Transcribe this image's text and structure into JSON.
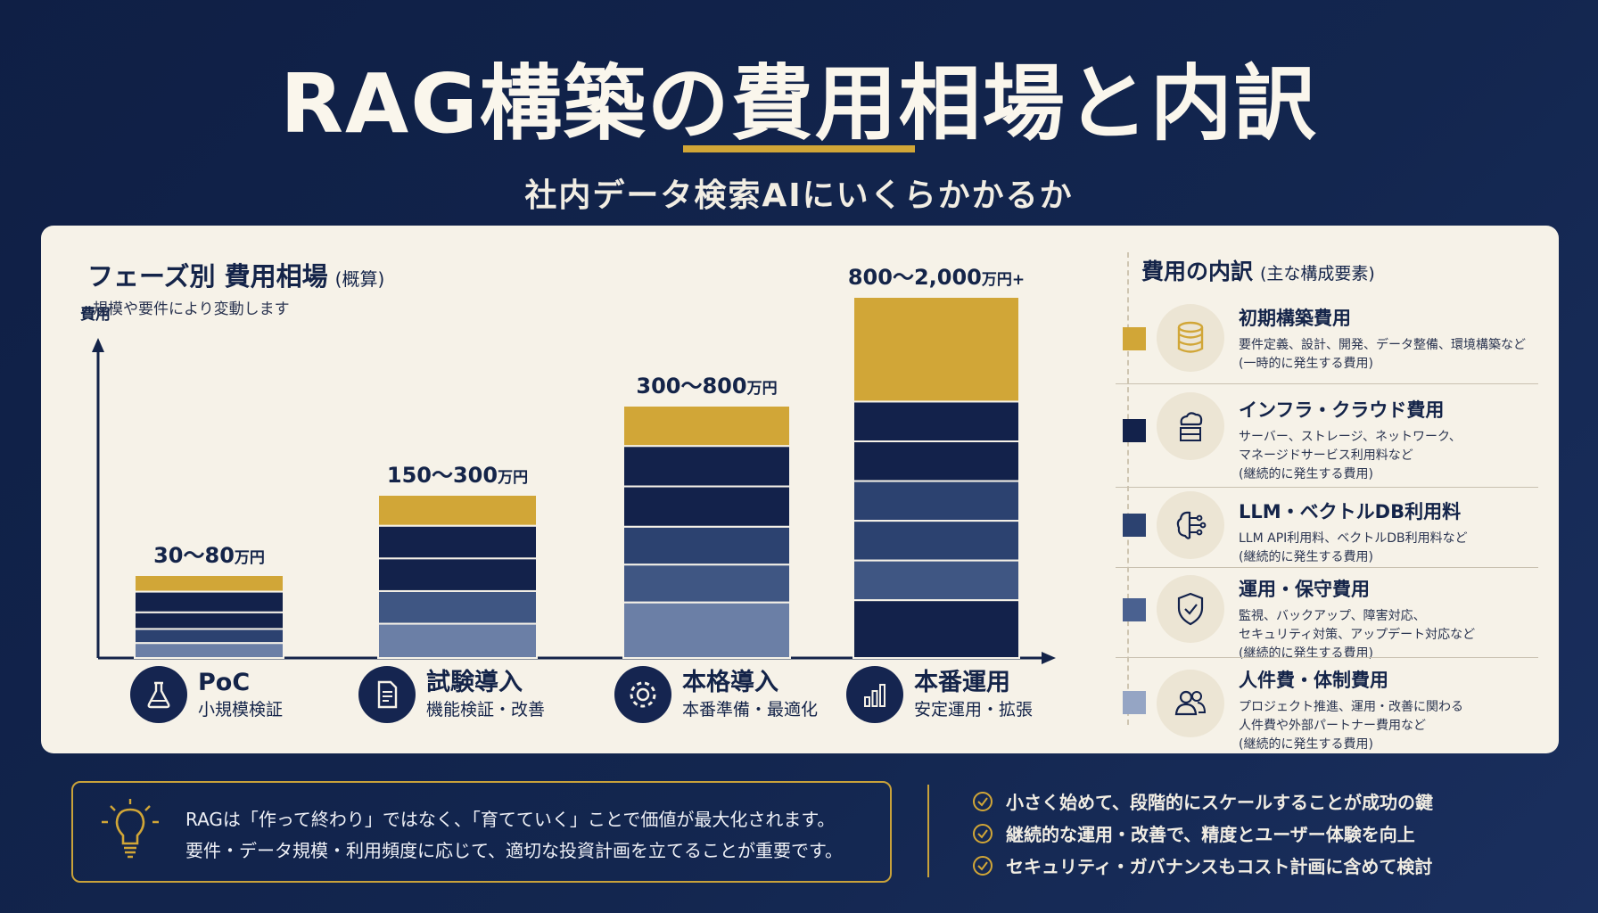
{
  "header": {
    "title": "RAG構築の費用相場と内訳",
    "subtitle": "社内データ検索AIにいくらかかるか"
  },
  "colors": {
    "background": "#13264f",
    "accent": "#d1a637",
    "navy": "#13224b",
    "blue_dark": "#2c4270",
    "blue_mid": "#3f5683",
    "blue_light": "#6b7fa6",
    "blue_pale": "#95a5c4"
  },
  "chart_section": {
    "title": "フェーズ別 費用相場",
    "title_note": "(概算)",
    "note": "規模や要件により変動します",
    "ylabel": "費用"
  },
  "chart_data": {
    "type": "bar",
    "stacked": true,
    "ylabel": "費用",
    "categories": [
      "PoC",
      "試験導入",
      "本格導入",
      "本番運用"
    ],
    "value_labels": [
      "30〜80",
      "150〜300",
      "300〜800",
      "800〜2,000"
    ],
    "value_units": [
      "万円",
      "万円",
      "万円",
      "万円+"
    ],
    "segments": [
      {
        "segment_colors": [
          "#d1a637",
          "#13224b",
          "#13224b",
          "#2c4270",
          "#6b7fa6"
        ],
        "segment_fracs": [
          0.2,
          0.25,
          0.2,
          0.17,
          0.18
        ]
      },
      {
        "segment_colors": [
          "#d1a637",
          "#13224b",
          "#13224b",
          "#3f5683",
          "#6b7fa6"
        ],
        "segment_fracs": [
          0.19,
          0.2,
          0.2,
          0.2,
          0.21
        ]
      },
      {
        "segment_colors": [
          "#d1a637",
          "#13224b",
          "#13224b",
          "#2c4270",
          "#3f5683",
          "#6b7fa6"
        ],
        "segment_fracs": [
          0.16,
          0.16,
          0.16,
          0.15,
          0.15,
          0.22
        ]
      },
      {
        "segment_colors": [
          "#d1a637",
          "#13224b",
          "#13224b",
          "#2c4270",
          "#2c4270",
          "#3f5683",
          "#13224b"
        ],
        "segment_fracs": [
          0.29,
          0.11,
          0.11,
          0.11,
          0.11,
          0.11,
          0.16
        ]
      }
    ],
    "legend_placement": "right",
    "grid": false
  },
  "phases": [
    {
      "name": "PoC",
      "sub": "小規模検証",
      "icon": "flask-icon"
    },
    {
      "name": "試験導入",
      "sub": "機能検証・改善",
      "icon": "document-icon"
    },
    {
      "name": "本格導入",
      "sub": "本番準備・最適化",
      "icon": "gear-icon"
    },
    {
      "name": "本番運用",
      "sub": "安定運用・拡張",
      "icon": "bar-chart-icon"
    }
  ],
  "breakdown": {
    "title": "費用の内訳",
    "title_note": "(主な構成要素)",
    "items": [
      {
        "name": "初期構築費用",
        "lines": [
          "要件定義、設計、開発、データ整備、環境構築など",
          "(一時的に発生する費用)"
        ],
        "color": "#d1a637",
        "icon": "database-icon"
      },
      {
        "name": "インフラ・クラウド費用",
        "lines": [
          "サーバー、ストレージ、ネットワーク、",
          "マネージドサービス利用料など",
          "(継続的に発生する費用)"
        ],
        "color": "#13224b",
        "icon": "cloud-server-icon"
      },
      {
        "name": "LLM・ベクトルDB利用料",
        "lines": [
          "LLM API利用料、ベクトルDB利用料など",
          "(継続的に発生する費用)"
        ],
        "color": "#2c4270",
        "icon": "brain-circuit-icon"
      },
      {
        "name": "運用・保守費用",
        "lines": [
          "監視、バックアップ、障害対応、",
          "セキュリティ対策、アップデート対応など",
          "(継続的に発生する費用)"
        ],
        "color": "#4a6190",
        "icon": "shield-icon"
      },
      {
        "name": "人件費・体制費用",
        "lines": [
          "プロジェクト推進、運用・改善に関わる",
          "人件費や外部パートナー費用など",
          "(継続的に発生する費用)"
        ],
        "color": "#95a5c4",
        "icon": "people-icon"
      }
    ]
  },
  "message": {
    "line1": "RAGは「作って終わり」ではなく、「育てていく」ことで価値が最大化されます。",
    "line2": "要件・データ規模・利用頻度に応じて、適切な投資計画を立てることが重要です。",
    "icon": "lightbulb-icon"
  },
  "checklist": [
    "小さく始めて、段階的にスケールすることが成功の鍵",
    "継続的な運用・改善で、精度とユーザー体験を向上",
    "セキュリティ・ガバナンスもコスト計画に含めて検討"
  ]
}
